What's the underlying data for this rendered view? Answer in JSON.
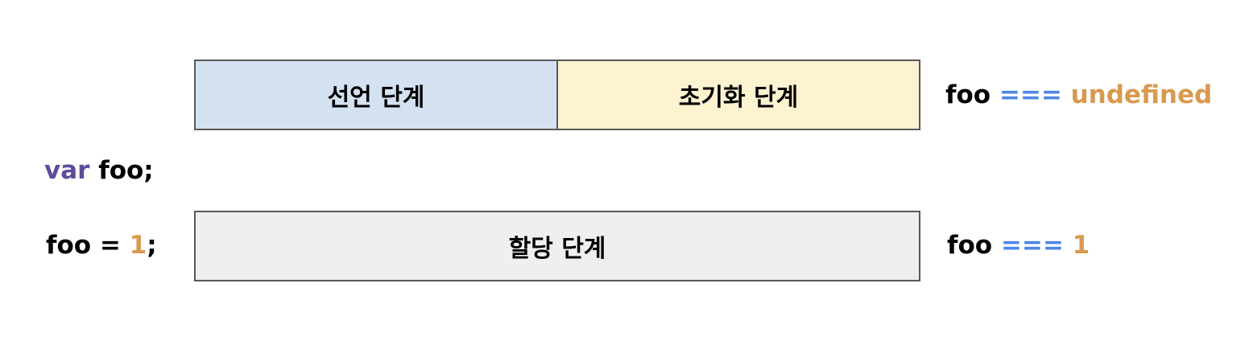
{
  "phases": {
    "declaration": "선언 단계",
    "initialization": "초기화 단계",
    "assignment": "할당 단계"
  },
  "code": {
    "declaration": {
      "keyword": "var",
      "rest": " foo;"
    },
    "assignment": {
      "lhs": "foo = ",
      "value": "1",
      "end": ";"
    }
  },
  "results": {
    "after_initialization": {
      "lhs": "foo ",
      "operator": "===",
      "value": " undefined"
    },
    "after_assignment": {
      "lhs": "foo ",
      "operator": "===",
      "value": " 1"
    }
  },
  "colors": {
    "declaration_fill": "#d4e1f1",
    "initialization_fill": "#fdf3d1",
    "assignment_fill": "#efefef",
    "border": "#595959",
    "keyword": "#5f4b99",
    "operator": "#4e86e6",
    "literal": "#d89a4f",
    "text": "#000000"
  }
}
